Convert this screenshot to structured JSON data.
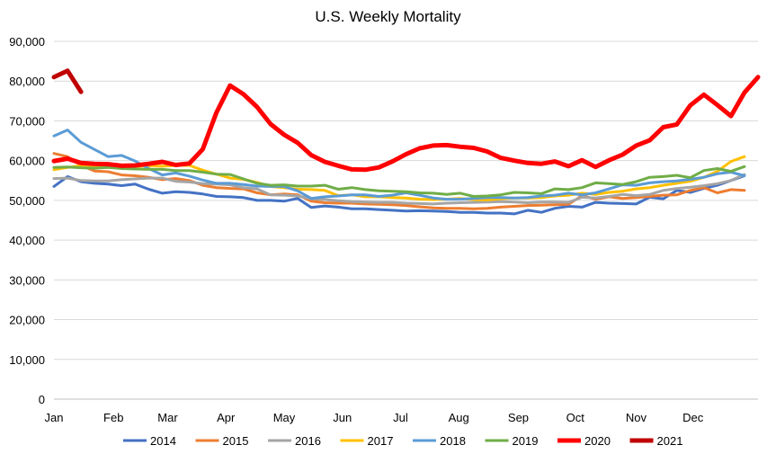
{
  "chart_data": {
    "type": "line",
    "title": "U.S. Weekly Mortality",
    "xlabel": "",
    "ylabel": "",
    "ylim": [
      0,
      90000
    ],
    "yticks": [
      0,
      10000,
      20000,
      30000,
      40000,
      50000,
      60000,
      70000,
      80000,
      90000
    ],
    "ytick_labels": [
      "0",
      "10,000",
      "20,000",
      "30,000",
      "40,000",
      "50,000",
      "60,000",
      "70,000",
      "80,000",
      "90,000"
    ],
    "month_labels": [
      "Jan",
      "Feb",
      "Mar",
      "Apr",
      "May",
      "Jun",
      "Jul",
      "Aug",
      "Sep",
      "Oct",
      "Nov",
      "Dec"
    ],
    "month_start_weeks": [
      1,
      5.4,
      9.4,
      13.7,
      18,
      22.3,
      26.6,
      30.9,
      35.3,
      39.5,
      44,
      48.2
    ],
    "grid": true,
    "legend_position": "bottom",
    "series": [
      {
        "name": "2014",
        "color": "#4472c4",
        "width": 3,
        "x": [
          1,
          2,
          3,
          4,
          5,
          6,
          7,
          8,
          9,
          10,
          11,
          12,
          13,
          14,
          15,
          16,
          17,
          18,
          19,
          20,
          21,
          22,
          23,
          24,
          25,
          26,
          27,
          28,
          29,
          30,
          31,
          32,
          33,
          34,
          35,
          36,
          37,
          38,
          39,
          40,
          41,
          42,
          43,
          44,
          45,
          46,
          47,
          48,
          49,
          50,
          51,
          52
        ],
        "values": [
          53500,
          56000,
          54700,
          54300,
          54100,
          53700,
          54100,
          52800,
          51800,
          52200,
          52000,
          51600,
          51000,
          50900,
          50700,
          50000,
          50000,
          49800,
          50500,
          48200,
          48600,
          48300,
          47900,
          47900,
          47700,
          47500,
          47300,
          47400,
          47300,
          47200,
          47000,
          47000,
          46800,
          46800,
          46600,
          47500,
          47000,
          48000,
          48500,
          48300,
          49500,
          49300,
          49200,
          49100,
          50800,
          50400,
          52500,
          52000,
          53000,
          53800,
          55000,
          56200
        ]
      },
      {
        "name": "2015",
        "color": "#ed7d31",
        "width": 3,
        "x": [
          1,
          2,
          3,
          4,
          5,
          6,
          7,
          8,
          9,
          10,
          11,
          12,
          13,
          14,
          15,
          16,
          17,
          18,
          19,
          20,
          21,
          22,
          23,
          24,
          25,
          26,
          27,
          28,
          29,
          30,
          31,
          32,
          33,
          34,
          35,
          36,
          37,
          38,
          39,
          40,
          41,
          42,
          43,
          44,
          45,
          46,
          47,
          48,
          49,
          50,
          51,
          52
        ],
        "values": [
          61800,
          61000,
          58800,
          57400,
          57200,
          56400,
          56200,
          55800,
          55200,
          55500,
          55000,
          53800,
          53200,
          53000,
          52900,
          51900,
          51400,
          51600,
          51400,
          49800,
          49400,
          49300,
          49300,
          49100,
          49000,
          48900,
          48700,
          48400,
          48100,
          48000,
          48000,
          47900,
          48000,
          48300,
          48500,
          48700,
          48800,
          48900,
          49000,
          51200,
          50300,
          50900,
          50500,
          50700,
          51000,
          51300,
          51400,
          52500,
          53200,
          51900,
          52700,
          52500
        ]
      },
      {
        "name": "2016",
        "color": "#a5a5a5",
        "width": 3,
        "x": [
          1,
          2,
          3,
          4,
          5,
          6,
          7,
          8,
          9,
          10,
          11,
          12,
          13,
          14,
          15,
          16,
          17,
          18,
          19,
          20,
          21,
          22,
          23,
          24,
          25,
          26,
          27,
          28,
          29,
          30,
          31,
          32,
          33,
          34,
          35,
          36,
          37,
          38,
          39,
          40,
          41,
          42,
          43,
          44,
          45,
          46,
          47,
          48,
          49,
          50,
          51,
          52
        ],
        "values": [
          55500,
          55600,
          55000,
          54900,
          54900,
          55200,
          55400,
          55600,
          55600,
          54800,
          54600,
          54200,
          54100,
          53900,
          53200,
          52900,
          51400,
          51300,
          51100,
          50400,
          50200,
          49900,
          49700,
          49600,
          49500,
          49500,
          49300,
          49200,
          49100,
          49300,
          49400,
          49500,
          49600,
          49700,
          49600,
          49400,
          49600,
          49600,
          49500,
          50800,
          50600,
          51000,
          51500,
          51200,
          51500,
          52500,
          53000,
          53300,
          53700,
          54200,
          55000,
          56500
        ]
      },
      {
        "name": "2017",
        "color": "#ffc000",
        "width": 3,
        "x": [
          1,
          2,
          3,
          4,
          5,
          6,
          7,
          8,
          9,
          10,
          11,
          12,
          13,
          14,
          15,
          16,
          17,
          18,
          19,
          20,
          21,
          22,
          23,
          24,
          25,
          26,
          27,
          28,
          29,
          30,
          31,
          32,
          33,
          34,
          35,
          36,
          37,
          38,
          39,
          40,
          41,
          42,
          43,
          44,
          45,
          46,
          47,
          48,
          49,
          50,
          51,
          52
        ],
        "values": [
          57700,
          58300,
          58700,
          58600,
          58700,
          58300,
          58500,
          58700,
          58600,
          58800,
          58800,
          57600,
          56600,
          55600,
          55300,
          54500,
          53500,
          53200,
          52800,
          52700,
          52500,
          51200,
          51400,
          50900,
          50900,
          50700,
          50600,
          50300,
          50200,
          50300,
          50500,
          50200,
          50100,
          50400,
          50600,
          50600,
          50700,
          51100,
          51300,
          51800,
          51500,
          52000,
          52300,
          52900,
          53200,
          53800,
          54300,
          54800,
          55800,
          57300,
          59800,
          61000
        ]
      },
      {
        "name": "2018",
        "color": "#5b9bd5",
        "width": 3,
        "x": [
          1,
          2,
          3,
          4,
          5,
          6,
          7,
          8,
          9,
          10,
          11,
          12,
          13,
          14,
          15,
          16,
          17,
          18,
          19,
          20,
          21,
          22,
          23,
          24,
          25,
          26,
          27,
          28,
          29,
          30,
          31,
          32,
          33,
          34,
          35,
          36,
          37,
          38,
          39,
          40,
          41,
          42,
          43,
          44,
          45,
          46,
          47,
          48,
          49,
          50,
          51,
          52
        ],
        "values": [
          66200,
          67700,
          64600,
          62800,
          61000,
          61300,
          59900,
          58000,
          56400,
          56900,
          56100,
          55100,
          54300,
          54300,
          54000,
          53600,
          53500,
          53500,
          52400,
          50500,
          50900,
          51100,
          51400,
          51400,
          51000,
          51300,
          51900,
          51300,
          50600,
          50300,
          50300,
          50500,
          50700,
          50700,
          50600,
          50700,
          51100,
          51300,
          51800,
          51400,
          51900,
          52900,
          53900,
          53800,
          54400,
          54700,
          54900,
          55300,
          55800,
          56700,
          57100,
          56200
        ]
      },
      {
        "name": "2019",
        "color": "#70ad47",
        "width": 3,
        "x": [
          1,
          2,
          3,
          4,
          5,
          6,
          7,
          8,
          9,
          10,
          11,
          12,
          13,
          14,
          15,
          16,
          17,
          18,
          19,
          20,
          21,
          22,
          23,
          24,
          25,
          26,
          27,
          28,
          29,
          30,
          31,
          32,
          33,
          34,
          35,
          36,
          37,
          38,
          39,
          40,
          41,
          42,
          43,
          44,
          45,
          46,
          47,
          48,
          49,
          50,
          51,
          52
        ],
        "values": [
          58300,
          58400,
          58200,
          58100,
          58300,
          58000,
          57900,
          57800,
          57800,
          57500,
          57500,
          57100,
          56600,
          56500,
          55400,
          54300,
          53800,
          53900,
          53600,
          53600,
          53800,
          52800,
          53200,
          52700,
          52400,
          52300,
          52200,
          51900,
          51800,
          51500,
          51800,
          51000,
          51100,
          51400,
          52000,
          51900,
          51700,
          52900,
          52700,
          53200,
          54400,
          54200,
          54000,
          54700,
          55800,
          56000,
          56300,
          55700,
          57500,
          58000,
          57300,
          58500
        ]
      },
      {
        "name": "2020",
        "color": "#ff0000",
        "width": 5,
        "x": [
          1,
          2,
          3,
          4,
          5,
          6,
          7,
          8,
          9,
          10,
          11,
          12,
          13,
          14,
          15,
          16,
          17,
          18,
          19,
          20,
          21,
          22,
          23,
          24,
          25,
          26,
          27,
          28,
          29,
          30,
          31,
          32,
          33,
          34,
          35,
          36,
          37,
          38,
          39,
          40,
          41,
          42,
          43,
          44,
          45,
          46,
          47,
          48,
          49,
          50,
          51,
          52,
          53
        ],
        "values": [
          59900,
          60500,
          59400,
          59200,
          59100,
          58700,
          58800,
          59200,
          59700,
          58900,
          59300,
          62900,
          72100,
          78900,
          76700,
          73500,
          69200,
          66500,
          64500,
          61400,
          59700,
          58700,
          57800,
          57700,
          58300,
          59800,
          61600,
          63100,
          63800,
          63900,
          63500,
          63200,
          62300,
          60700,
          60000,
          59400,
          59200,
          59800,
          58600,
          60100,
          58400,
          60100,
          61500,
          63800,
          65100,
          68400,
          69100,
          73900,
          76600,
          74000,
          71200,
          77100,
          81000
        ]
      },
      {
        "name": "2021",
        "color": "#c00000",
        "width": 5,
        "x": [
          1,
          2,
          3
        ],
        "values": [
          81000,
          82600,
          77300
        ]
      }
    ]
  }
}
